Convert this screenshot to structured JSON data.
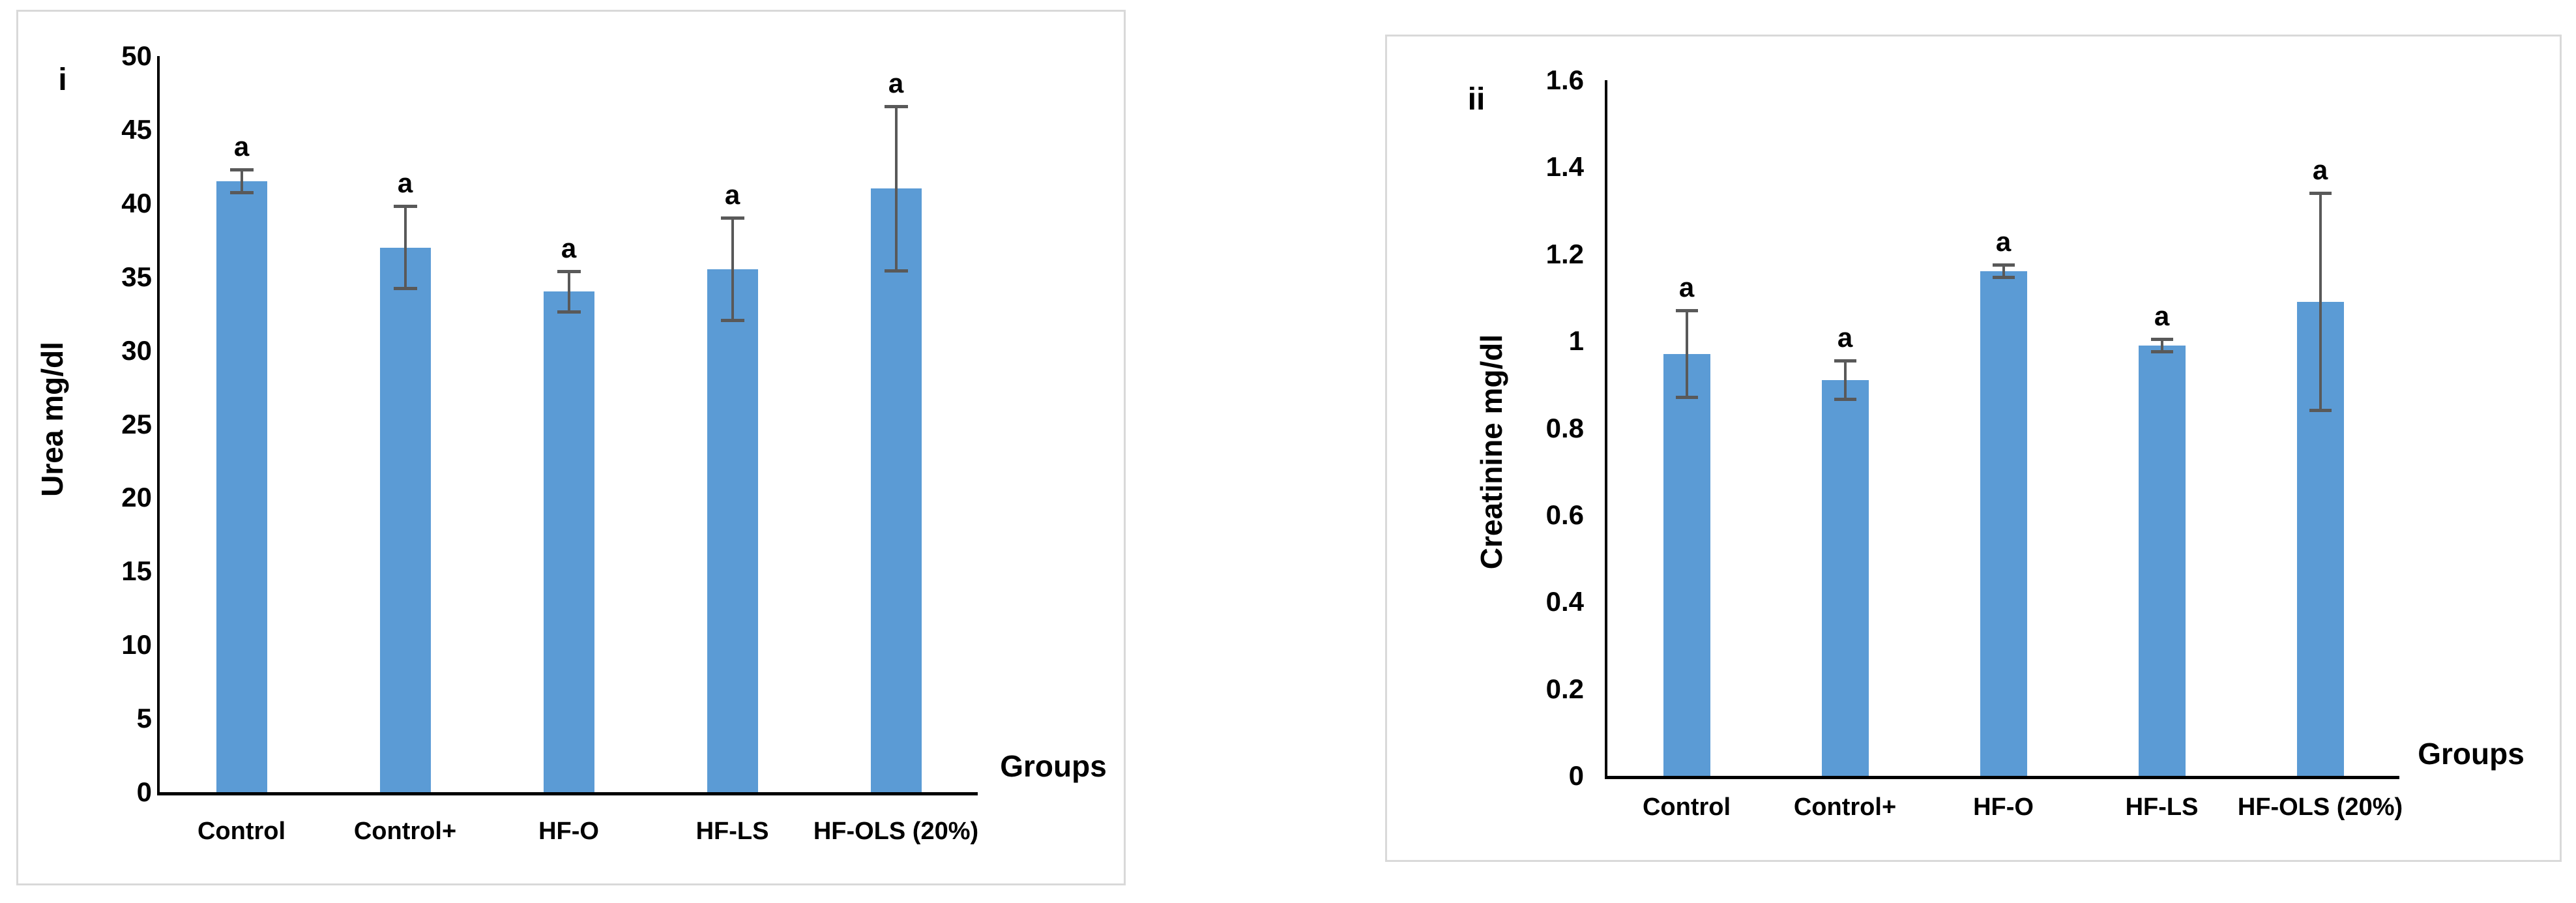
{
  "figure": {
    "background": "#ffffff",
    "panel_border_color": "#d9d9d9"
  },
  "chart_data": [
    {
      "type": "bar",
      "panel_label": "i",
      "title": "",
      "categories": [
        "Control",
        "Control+",
        "HF-O",
        "HF-LS",
        "HF-OLS (20%)"
      ],
      "values": [
        41.5,
        37.0,
        34.0,
        35.5,
        41.0
      ],
      "error_bars": [
        0.8,
        2.8,
        1.4,
        3.5,
        5.6
      ],
      "significance_labels": [
        "a",
        "a",
        "a",
        "a",
        "a"
      ],
      "xlabel": "Groups",
      "ylabel": "Urea mg/dl",
      "ylim": [
        0,
        50
      ],
      "ytick_step": 5,
      "yticks": [
        0,
        5,
        10,
        15,
        20,
        25,
        30,
        35,
        40,
        45,
        50
      ],
      "ytick_labels": [
        "0",
        "5",
        "10",
        "15",
        "20",
        "25",
        "30",
        "35",
        "40",
        "45",
        "50"
      ],
      "bar_color": "#5B9BD5",
      "error_color": "#595959",
      "axis_color": "#000000",
      "grid": false,
      "legend": "none"
    },
    {
      "type": "bar",
      "panel_label": "ii",
      "title": "",
      "categories": [
        "Control",
        "Control+",
        "HF-O",
        "HF-LS",
        "HF-OLS (20%)"
      ],
      "values": [
        0.97,
        0.91,
        1.16,
        0.99,
        1.09
      ],
      "error_bars": [
        0.1,
        0.045,
        0.015,
        0.015,
        0.25
      ],
      "significance_labels": [
        "a",
        "a",
        "a",
        "a",
        "a"
      ],
      "xlabel": "Groups",
      "ylabel": "Creatinine mg/dl",
      "ylim": [
        0,
        1.6
      ],
      "ytick_step": 0.2,
      "yticks": [
        0,
        0.2,
        0.4,
        0.6,
        0.8,
        1.0,
        1.2,
        1.4,
        1.6
      ],
      "ytick_labels": [
        "0",
        "0.2",
        "0.4",
        "0.6",
        "0.8",
        "1",
        "1.2",
        "1.4",
        "1.6"
      ],
      "bar_color": "#5B9BD5",
      "error_color": "#595959",
      "axis_color": "#000000",
      "grid": false,
      "legend": "none"
    }
  ]
}
